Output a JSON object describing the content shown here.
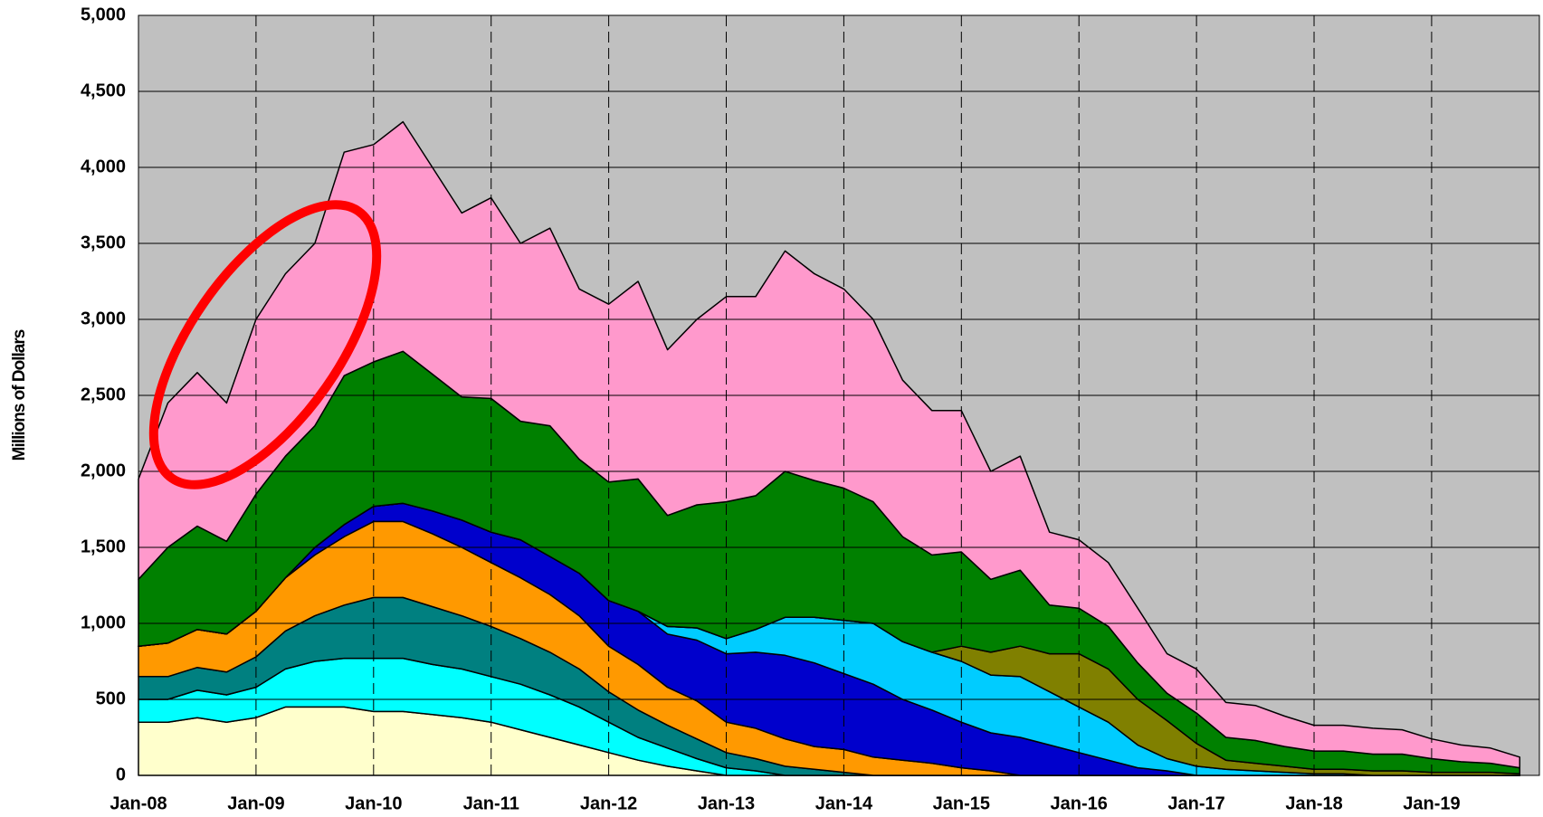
{
  "chart_data": {
    "type": "stacked_area",
    "y_label": "Millions of Dollars",
    "categories": [
      "Jan-08",
      null,
      null,
      null,
      "Jan-09",
      null,
      null,
      null,
      "Jan-10",
      null,
      null,
      null,
      "Jan-11",
      null,
      null,
      null,
      "Jan-12",
      null,
      null,
      null,
      "Jan-13",
      null,
      null,
      null,
      "Jan-14",
      null,
      null,
      null,
      "Jan-15",
      null,
      null,
      null,
      "Jan-16",
      null,
      null,
      null,
      "Jan-17",
      null,
      null,
      null,
      "Jan-18",
      null,
      null,
      null,
      "Jan-19",
      null,
      null,
      null
    ],
    "ylim": [
      0,
      5000
    ],
    "yticks": [
      0,
      500,
      {
        "value": 1000,
        "label": "1,000"
      },
      {
        "value": 1500,
        "label": "1,500"
      },
      {
        "value": 2000,
        "label": "2,000"
      },
      {
        "value": 2500,
        "label": "2,500"
      },
      {
        "value": 3000,
        "label": "3,000"
      },
      {
        "value": 3500,
        "label": "3,500"
      },
      {
        "value": 4000,
        "label": "4,000"
      },
      {
        "value": 4500,
        "label": "4,500"
      },
      {
        "value": 5000,
        "label": "5,000"
      }
    ],
    "grid": true,
    "series": [
      {
        "color": "#ffffcc",
        "values": [
          350,
          350,
          380,
          350,
          380,
          450,
          450,
          450,
          420,
          420,
          400,
          380,
          350,
          300,
          250,
          200,
          150,
          100,
          60,
          30,
          0,
          0,
          0,
          0,
          0,
          0,
          0,
          0,
          0,
          0,
          0,
          0,
          0,
          0,
          0,
          0,
          0,
          0,
          0,
          0,
          0,
          0,
          0,
          0,
          0,
          0,
          0,
          0
        ]
      },
      {
        "color": "#00ffff",
        "values": [
          150,
          150,
          180,
          180,
          200,
          250,
          300,
          320,
          350,
          350,
          330,
          320,
          300,
          300,
          280,
          250,
          200,
          150,
          120,
          80,
          50,
          30,
          0,
          0,
          0,
          0,
          0,
          0,
          0,
          0,
          0,
          0,
          0,
          0,
          0,
          0,
          0,
          0,
          0,
          0,
          0,
          0,
          0,
          0,
          0,
          0,
          0,
          0
        ]
      },
      {
        "color": "#008080",
        "values": [
          150,
          150,
          150,
          150,
          200,
          250,
          300,
          350,
          400,
          400,
          380,
          350,
          330,
          300,
          280,
          250,
          200,
          180,
          150,
          130,
          100,
          80,
          60,
          40,
          20,
          0,
          0,
          0,
          0,
          0,
          0,
          0,
          0,
          0,
          0,
          0,
          0,
          0,
          0,
          0,
          0,
          0,
          0,
          0,
          0,
          0,
          0,
          0
        ]
      },
      {
        "color": "#ff9900",
        "values": [
          200,
          220,
          250,
          250,
          300,
          350,
          400,
          450,
          500,
          500,
          480,
          450,
          420,
          400,
          380,
          350,
          300,
          300,
          250,
          250,
          200,
          200,
          180,
          150,
          150,
          120,
          100,
          80,
          50,
          30,
          0,
          0,
          0,
          0,
          0,
          0,
          0,
          0,
          0,
          0,
          0,
          0,
          0,
          0,
          0,
          0,
          0,
          0
        ]
      },
      {
        "color": "#0000cc",
        "values": [
          0,
          0,
          0,
          0,
          0,
          0,
          50,
          80,
          100,
          120,
          150,
          180,
          200,
          250,
          250,
          280,
          300,
          350,
          350,
          400,
          450,
          500,
          550,
          550,
          500,
          480,
          400,
          350,
          300,
          250,
          250,
          200,
          150,
          100,
          50,
          30,
          0,
          0,
          0,
          0,
          0,
          0,
          0,
          0,
          0,
          0,
          0,
          0
        ]
      },
      {
        "color": "#00ccff",
        "values": [
          0,
          0,
          0,
          0,
          0,
          0,
          0,
          0,
          0,
          0,
          0,
          0,
          0,
          0,
          0,
          0,
          0,
          0,
          50,
          80,
          100,
          150,
          250,
          300,
          350,
          400,
          380,
          380,
          400,
          380,
          400,
          350,
          300,
          250,
          150,
          80,
          60,
          40,
          30,
          20,
          10,
          10,
          0,
          0,
          0,
          0,
          0,
          0
        ]
      },
      {
        "color": "#808000",
        "values": [
          0,
          0,
          0,
          0,
          0,
          0,
          0,
          0,
          0,
          0,
          0,
          0,
          0,
          0,
          0,
          0,
          0,
          0,
          0,
          0,
          0,
          0,
          0,
          0,
          0,
          0,
          0,
          0,
          100,
          150,
          200,
          250,
          350,
          350,
          300,
          250,
          150,
          60,
          50,
          40,
          30,
          30,
          30,
          30,
          20,
          20,
          20,
          10
        ]
      },
      {
        "color": "#008000",
        "values": [
          440,
          630,
          680,
          610,
          770,
          800,
          800,
          980,
          950,
          1000,
          900,
          810,
          880,
          780,
          860,
          750,
          780,
          870,
          730,
          810,
          900,
          880,
          960,
          900,
          870,
          800,
          690,
          640,
          620,
          480,
          500,
          320,
          300,
          280,
          240,
          180,
          200,
          150,
          150,
          130,
          120,
          120,
          110,
          110,
          90,
          70,
          60,
          40
        ]
      },
      {
        "color": "#ff99cc",
        "values": [
          660,
          950,
          1010,
          910,
          1150,
          1200,
          1200,
          1470,
          1430,
          1510,
          1360,
          1210,
          1320,
          1170,
          1300,
          1120,
          1170,
          1300,
          1090,
          1220,
          1350,
          1310,
          1450,
          1360,
          1310,
          1200,
          1030,
          950,
          930,
          710,
          750,
          480,
          450,
          420,
          360,
          260,
          290,
          230,
          230,
          200,
          170,
          170,
          170,
          160,
          130,
          110,
          100,
          70
        ]
      }
    ]
  }
}
